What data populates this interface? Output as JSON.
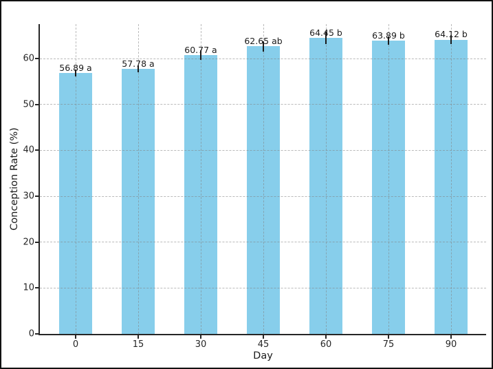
{
  "chart_data": {
    "type": "bar",
    "title": "",
    "xlabel": "Day",
    "ylabel": "Conception Rate (%)",
    "categories": [
      "0",
      "15",
      "30",
      "45",
      "60",
      "75",
      "90"
    ],
    "values": [
      56.89,
      57.78,
      60.77,
      62.65,
      64.45,
      63.89,
      64.12
    ],
    "errors": [
      0.75,
      0.75,
      1.0,
      1.1,
      1.35,
      0.9,
      1.0
    ],
    "bar_labels": [
      "56.89 a",
      "57.78 a",
      "60.77 a",
      "62.65 ab",
      "64.45 b",
      "63.89 b",
      "64.12 b"
    ],
    "significance_letters": [
      "a",
      "a",
      "a",
      "ab",
      "b",
      "b",
      "b"
    ],
    "yticks": [
      0,
      10,
      20,
      30,
      40,
      50,
      60
    ],
    "ylim": [
      0,
      67.5
    ],
    "bar_color": "#87CEEB",
    "error_bar_color": "#1a1a1a",
    "spine_color": "#262626",
    "grid": true,
    "grid_style": "dashed",
    "legend_position": "none"
  }
}
